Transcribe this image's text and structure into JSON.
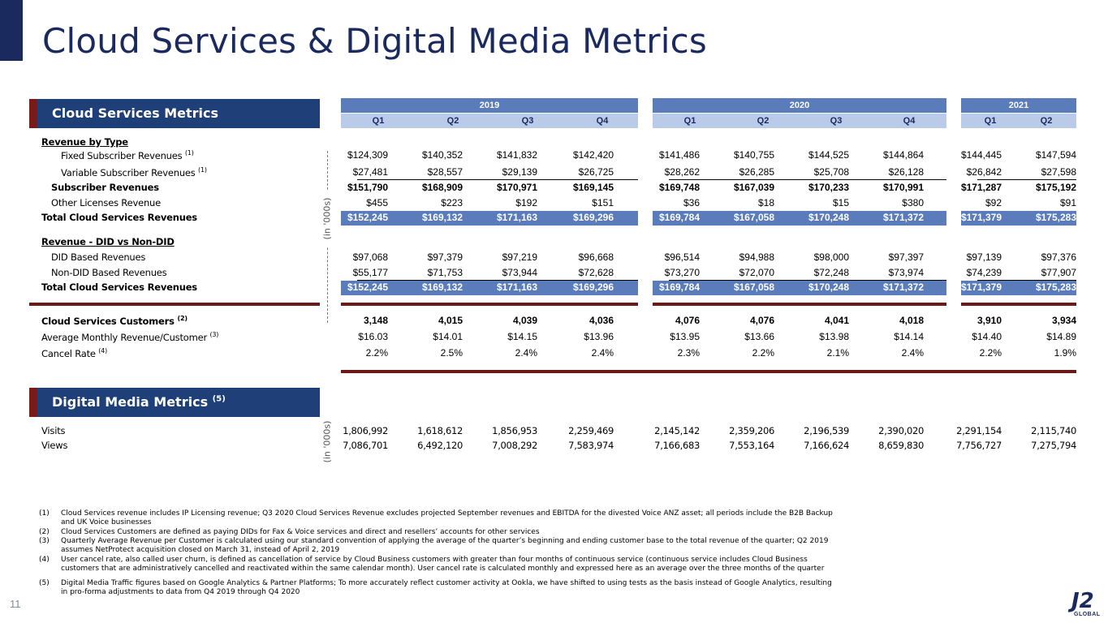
{
  "title": "Cloud Services & Digital Media Metrics",
  "cloud_header": "Cloud Services Metrics",
  "digital_header": "Digital Media Metrics",
  "digital_header_sup": "(5)",
  "years": [
    "2019",
    "2020",
    "2021"
  ],
  "quarters": [
    "Q1",
    "Q2",
    "Q3",
    "Q4",
    "Q1",
    "Q2",
    "Q3",
    "Q4",
    "Q1",
    "Q2"
  ],
  "in_thousands": "(in '000s)",
  "rows": [
    {
      "label": "Revenue by Type",
      "sup": "",
      "style": "u",
      "indent": 0,
      "values": []
    },
    {
      "label": "Fixed Subscriber Revenues",
      "sup": "(1)",
      "style": "",
      "indent": 2,
      "values": [
        "$124,309",
        "$140,352",
        "$141,832",
        "$142,420",
        "$141,486",
        "$140,755",
        "$144,525",
        "$144,864",
        "$144,445",
        "$147,594"
      ]
    },
    {
      "label": "Variable Subscriber Revenues",
      "sup": "(1)",
      "style": "",
      "indent": 2,
      "values": [
        "$27,481",
        "$28,557",
        "$29,139",
        "$26,725",
        "$28,262",
        "$26,285",
        "$25,708",
        "$26,128",
        "$26,842",
        "$27,598"
      ]
    },
    {
      "label": "Subscriber Revenues",
      "sup": "",
      "style": "b",
      "indent": 1,
      "values": [
        "$151,790",
        "$168,909",
        "$170,971",
        "$169,145",
        "$169,748",
        "$167,039",
        "$170,233",
        "$170,991",
        "$171,287",
        "$175,192"
      ]
    },
    {
      "label": "Other Licenses Revenue",
      "sup": "",
      "style": "",
      "indent": 1,
      "values": [
        "$455",
        "$223",
        "$192",
        "$151",
        "$36",
        "$18",
        "$15",
        "$380",
        "$92",
        "$91"
      ]
    },
    {
      "label": "Total Cloud Services Revenues",
      "sup": "",
      "style": "b",
      "indent": 0,
      "values": [
        "$152,245",
        "$169,132",
        "$171,163",
        "$169,296",
        "$169,784",
        "$167,058",
        "$170,248",
        "$171,372",
        "$171,379",
        "$175,283"
      ]
    },
    {
      "label": "Revenue - DID vs Non-DID",
      "sup": "",
      "style": "u",
      "indent": 0,
      "values": []
    },
    {
      "label": "DID Based Revenues",
      "sup": "",
      "style": "",
      "indent": 1,
      "values": [
        "$97,068",
        "$97,379",
        "$97,219",
        "$96,668",
        "$96,514",
        "$94,988",
        "$98,000",
        "$97,397",
        "$97,139",
        "$97,376"
      ]
    },
    {
      "label": "Non-DID Based Revenues",
      "sup": "",
      "style": "",
      "indent": 1,
      "values": [
        "$55,177",
        "$71,753",
        "$73,944",
        "$72,628",
        "$73,270",
        "$72,070",
        "$72,248",
        "$73,974",
        "$74,239",
        "$77,907"
      ]
    },
    {
      "label": "Total Cloud Services Revenues",
      "sup": "",
      "style": "b",
      "indent": 0,
      "values": [
        "$152,245",
        "$169,132",
        "$171,163",
        "$169,296",
        "$169,784",
        "$167,058",
        "$170,248",
        "$171,372",
        "$171,379",
        "$175,283"
      ]
    },
    {
      "label": "Cloud Services Customers",
      "sup": "(2)",
      "style": "b",
      "indent": 0,
      "values": [
        "3,148",
        "4,015",
        "4,039",
        "4,036",
        "4,076",
        "4,076",
        "4,041",
        "4,018",
        "3,910",
        "3,934"
      ]
    },
    {
      "label": "Average Monthly Revenue/Customer",
      "sup": "(3)",
      "style": "",
      "indent": 0,
      "values": [
        "$16.03",
        "$14.01",
        "$14.15",
        "$13.96",
        "$13.95",
        "$13.66",
        "$13.98",
        "$14.14",
        "$14.40",
        "$14.89"
      ]
    },
    {
      "label": "Cancel Rate",
      "sup": "(4)",
      "style": "",
      "indent": 0,
      "values": [
        "2.2%",
        "2.5%",
        "2.4%",
        "2.4%",
        "2.3%",
        "2.2%",
        "2.1%",
        "2.4%",
        "2.2%",
        "1.9%"
      ]
    },
    {
      "label": "Visits",
      "sup": "",
      "style": "",
      "indent": 0,
      "values": [
        "1,806,992",
        "1,618,612",
        "1,856,953",
        "2,259,469",
        "2,145,142",
        "2,359,206",
        "2,196,539",
        "2,390,020",
        "2,291,154",
        "2,115,740"
      ]
    },
    {
      "label": "Views",
      "sup": "",
      "style": "",
      "indent": 0,
      "values": [
        "7,086,701",
        "6,492,120",
        "7,008,292",
        "7,583,974",
        "7,166,683",
        "7,553,164",
        "7,166,624",
        "8,659,830",
        "7,756,727",
        "7,275,794"
      ]
    }
  ],
  "footnotes": [
    {
      "num": "(1)",
      "lines": [
        "Cloud Services revenue includes IP Licensing revenue; Q3 2020 Cloud Services Revenue excludes projected September revenues and EBITDA for the divested Voice ANZ asset; all periods include the B2B Backup",
        "and UK Voice businesses"
      ]
    },
    {
      "num": "(2)",
      "lines": [
        "Cloud Services Customers are defined as paying DIDs for Fax & Voice services and direct and resellers’ accounts for other services"
      ]
    },
    {
      "num": "(3)",
      "lines": [
        "Quarterly Average Revenue per Customer is calculated using our standard convention of applying the average of the quarter’s beginning and ending customer base to the total revenue of the quarter; Q2 2019",
        "assumes NetProtect acquisition closed on March 31, instead of April 2, 2019"
      ]
    },
    {
      "num": "(4)",
      "lines": [
        "User cancel rate, also called user churn, is defined as cancellation of service by Cloud Business customers with greater than four months of continuous service (continuous service includes Cloud Business",
        "customers that are administratively cancelled and reactivated within the same calendar month). User cancel rate is calculated monthly and expressed here as an average over the three months of the quarter"
      ]
    },
    {
      "num": "(5)",
      "lines": [
        "Digital Media Traffic figures based on Google Analytics & Partner Platforms; To more accurately reflect customer activity at Ookla, we have shifted to using tests as the basis instead of Google Analytics, resulting",
        "in pro-forma adjustments to data from Q4 2019 through Q4 2020"
      ]
    }
  ],
  "page_number": "11",
  "logo": "J2",
  "logo_sub": "GLOBAL"
}
